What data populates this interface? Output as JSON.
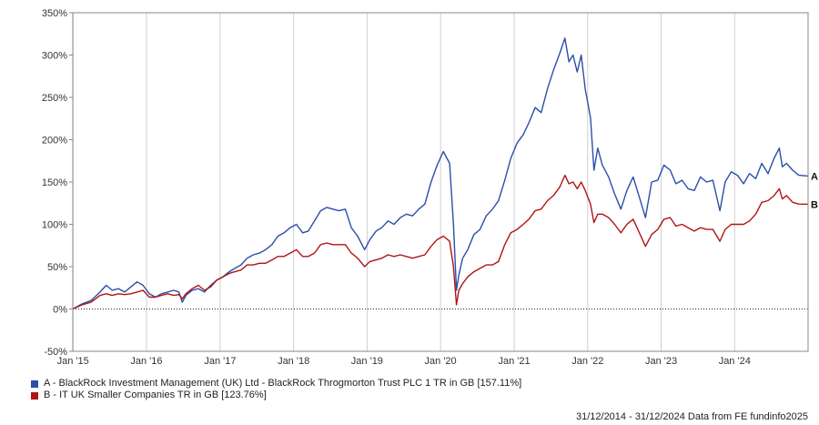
{
  "chart_data": {
    "type": "line",
    "title": "",
    "xlabel": "",
    "ylabel": "",
    "ylim": [
      -50,
      350
    ],
    "y_ticks": [
      -50,
      0,
      50,
      100,
      150,
      200,
      250,
      300,
      350
    ],
    "y_tick_labels": [
      "-50%",
      "0%",
      "50%",
      "100%",
      "150%",
      "200%",
      "250%",
      "300%",
      "350%"
    ],
    "x_range": [
      "2014-12-31",
      "2024-12-31"
    ],
    "x_ticks": [
      "2015-01-01",
      "2016-01-01",
      "2017-01-01",
      "2018-01-01",
      "2019-01-01",
      "2020-01-01",
      "2021-01-01",
      "2022-01-01",
      "2023-01-01",
      "2024-01-01"
    ],
    "x_tick_labels": [
      "Jan '15",
      "Jan '16",
      "Jan '17",
      "Jan '18",
      "Jan '19",
      "Jan '20",
      "Jan '21",
      "Jan '22",
      "Jan '23",
      "Jan '24"
    ],
    "grid": "vertical",
    "zero_line": "dotted",
    "legend_placement": "bottom-left",
    "series": [
      {
        "key": "A",
        "name": "A - BlackRock Investment Management (UK) Ltd - BlackRock Throgmorton Trust PLC 1 TR in GB [157.11%]",
        "color": "#2a4fa8",
        "points": [
          [
            "2014-12-31",
            0
          ],
          [
            "2015-02-15",
            6
          ],
          [
            "2015-04-01",
            10
          ],
          [
            "2015-05-15",
            20
          ],
          [
            "2015-06-15",
            28
          ],
          [
            "2015-07-15",
            22
          ],
          [
            "2015-08-15",
            24
          ],
          [
            "2015-09-15",
            20
          ],
          [
            "2015-10-15",
            26
          ],
          [
            "2015-11-15",
            32
          ],
          [
            "2015-12-15",
            28
          ],
          [
            "2016-01-15",
            18
          ],
          [
            "2016-02-15",
            14
          ],
          [
            "2016-03-15",
            18
          ],
          [
            "2016-04-15",
            20
          ],
          [
            "2016-05-15",
            22
          ],
          [
            "2016-06-10",
            20
          ],
          [
            "2016-06-27",
            8
          ],
          [
            "2016-07-15",
            16
          ],
          [
            "2016-08-15",
            22
          ],
          [
            "2016-09-15",
            24
          ],
          [
            "2016-10-15",
            20
          ],
          [
            "2016-11-15",
            28
          ],
          [
            "2016-12-15",
            34
          ],
          [
            "2017-01-15",
            38
          ],
          [
            "2017-02-15",
            44
          ],
          [
            "2017-03-15",
            48
          ],
          [
            "2017-04-15",
            52
          ],
          [
            "2017-05-15",
            60
          ],
          [
            "2017-06-15",
            64
          ],
          [
            "2017-07-15",
            66
          ],
          [
            "2017-08-15",
            70
          ],
          [
            "2017-09-15",
            76
          ],
          [
            "2017-10-15",
            86
          ],
          [
            "2017-11-15",
            90
          ],
          [
            "2017-12-15",
            96
          ],
          [
            "2018-01-15",
            100
          ],
          [
            "2018-02-15",
            90
          ],
          [
            "2018-03-15",
            92
          ],
          [
            "2018-04-15",
            104
          ],
          [
            "2018-05-15",
            116
          ],
          [
            "2018-06-15",
            120
          ],
          [
            "2018-07-15",
            118
          ],
          [
            "2018-08-15",
            116
          ],
          [
            "2018-09-15",
            118
          ],
          [
            "2018-10-15",
            96
          ],
          [
            "2018-11-15",
            86
          ],
          [
            "2018-12-20",
            70
          ],
          [
            "2019-01-15",
            82
          ],
          [
            "2019-02-15",
            92
          ],
          [
            "2019-03-15",
            96
          ],
          [
            "2019-04-15",
            104
          ],
          [
            "2019-05-15",
            100
          ],
          [
            "2019-06-15",
            108
          ],
          [
            "2019-07-15",
            112
          ],
          [
            "2019-08-15",
            110
          ],
          [
            "2019-09-15",
            118
          ],
          [
            "2019-10-15",
            124
          ],
          [
            "2019-11-15",
            150
          ],
          [
            "2019-12-15",
            170
          ],
          [
            "2020-01-15",
            186
          ],
          [
            "2020-02-15",
            172
          ],
          [
            "2020-03-05",
            100
          ],
          [
            "2020-03-20",
            22
          ],
          [
            "2020-04-01",
            40
          ],
          [
            "2020-04-20",
            60
          ],
          [
            "2020-05-15",
            70
          ],
          [
            "2020-06-15",
            88
          ],
          [
            "2020-07-15",
            94
          ],
          [
            "2020-08-15",
            110
          ],
          [
            "2020-09-15",
            118
          ],
          [
            "2020-10-15",
            128
          ],
          [
            "2020-11-15",
            152
          ],
          [
            "2020-12-15",
            178
          ],
          [
            "2021-01-15",
            196
          ],
          [
            "2021-02-15",
            206
          ],
          [
            "2021-03-15",
            220
          ],
          [
            "2021-04-15",
            238
          ],
          [
            "2021-05-15",
            232
          ],
          [
            "2021-06-15",
            260
          ],
          [
            "2021-07-15",
            282
          ],
          [
            "2021-08-15",
            302
          ],
          [
            "2021-09-10",
            320
          ],
          [
            "2021-09-30",
            292
          ],
          [
            "2021-10-20",
            300
          ],
          [
            "2021-11-10",
            280
          ],
          [
            "2021-11-30",
            300
          ],
          [
            "2021-12-20",
            260
          ],
          [
            "2022-01-15",
            226
          ],
          [
            "2022-02-01",
            164
          ],
          [
            "2022-02-20",
            190
          ],
          [
            "2022-03-15",
            170
          ],
          [
            "2022-04-15",
            156
          ],
          [
            "2022-05-15",
            136
          ],
          [
            "2022-06-15",
            118
          ],
          [
            "2022-07-15",
            140
          ],
          [
            "2022-08-15",
            156
          ],
          [
            "2022-09-15",
            132
          ],
          [
            "2022-10-15",
            108
          ],
          [
            "2022-11-15",
            150
          ],
          [
            "2022-12-15",
            152
          ],
          [
            "2023-01-15",
            170
          ],
          [
            "2023-02-15",
            164
          ],
          [
            "2023-03-15",
            148
          ],
          [
            "2023-04-15",
            152
          ],
          [
            "2023-05-15",
            142
          ],
          [
            "2023-06-15",
            140
          ],
          [
            "2023-07-15",
            156
          ],
          [
            "2023-08-15",
            150
          ],
          [
            "2023-09-15",
            152
          ],
          [
            "2023-10-20",
            116
          ],
          [
            "2023-11-15",
            150
          ],
          [
            "2023-12-15",
            162
          ],
          [
            "2024-01-15",
            158
          ],
          [
            "2024-02-15",
            148
          ],
          [
            "2024-03-15",
            160
          ],
          [
            "2024-04-15",
            154
          ],
          [
            "2024-05-15",
            172
          ],
          [
            "2024-06-15",
            160
          ],
          [
            "2024-07-15",
            178
          ],
          [
            "2024-08-10",
            190
          ],
          [
            "2024-08-25",
            168
          ],
          [
            "2024-09-15",
            172
          ],
          [
            "2024-10-15",
            164
          ],
          [
            "2024-11-15",
            158
          ],
          [
            "2024-12-31",
            157.11
          ]
        ]
      },
      {
        "key": "B",
        "name": "B - IT UK Smaller Companies TR in GB [123.76%]",
        "color": "#b01414",
        "points": [
          [
            "2014-12-31",
            0
          ],
          [
            "2015-02-15",
            5
          ],
          [
            "2015-04-01",
            8
          ],
          [
            "2015-05-15",
            16
          ],
          [
            "2015-06-15",
            18
          ],
          [
            "2015-07-15",
            16
          ],
          [
            "2015-08-15",
            18
          ],
          [
            "2015-09-15",
            17
          ],
          [
            "2015-10-15",
            18
          ],
          [
            "2015-11-15",
            20
          ],
          [
            "2015-12-15",
            22
          ],
          [
            "2016-01-15",
            14
          ],
          [
            "2016-02-15",
            14
          ],
          [
            "2016-03-15",
            16
          ],
          [
            "2016-04-15",
            18
          ],
          [
            "2016-05-15",
            16
          ],
          [
            "2016-06-10",
            17
          ],
          [
            "2016-06-27",
            12
          ],
          [
            "2016-07-15",
            18
          ],
          [
            "2016-08-15",
            24
          ],
          [
            "2016-09-15",
            28
          ],
          [
            "2016-10-15",
            22
          ],
          [
            "2016-11-15",
            26
          ],
          [
            "2016-12-15",
            34
          ],
          [
            "2017-01-15",
            38
          ],
          [
            "2017-02-15",
            42
          ],
          [
            "2017-03-15",
            44
          ],
          [
            "2017-04-15",
            46
          ],
          [
            "2017-05-15",
            52
          ],
          [
            "2017-06-15",
            52
          ],
          [
            "2017-07-15",
            54
          ],
          [
            "2017-08-15",
            54
          ],
          [
            "2017-09-15",
            58
          ],
          [
            "2017-10-15",
            62
          ],
          [
            "2017-11-15",
            62
          ],
          [
            "2017-12-15",
            66
          ],
          [
            "2018-01-15",
            70
          ],
          [
            "2018-02-15",
            62
          ],
          [
            "2018-03-15",
            62
          ],
          [
            "2018-04-15",
            66
          ],
          [
            "2018-05-15",
            76
          ],
          [
            "2018-06-15",
            78
          ],
          [
            "2018-07-15",
            76
          ],
          [
            "2018-08-15",
            76
          ],
          [
            "2018-09-15",
            76
          ],
          [
            "2018-10-15",
            66
          ],
          [
            "2018-11-15",
            60
          ],
          [
            "2018-12-20",
            50
          ],
          [
            "2019-01-15",
            56
          ],
          [
            "2019-02-15",
            58
          ],
          [
            "2019-03-15",
            60
          ],
          [
            "2019-04-15",
            64
          ],
          [
            "2019-05-15",
            62
          ],
          [
            "2019-06-15",
            64
          ],
          [
            "2019-07-15",
            62
          ],
          [
            "2019-08-15",
            60
          ],
          [
            "2019-09-15",
            62
          ],
          [
            "2019-10-15",
            64
          ],
          [
            "2019-11-15",
            74
          ],
          [
            "2019-12-15",
            82
          ],
          [
            "2020-01-15",
            86
          ],
          [
            "2020-02-15",
            80
          ],
          [
            "2020-03-05",
            50
          ],
          [
            "2020-03-20",
            5
          ],
          [
            "2020-04-01",
            22
          ],
          [
            "2020-04-20",
            30
          ],
          [
            "2020-05-15",
            38
          ],
          [
            "2020-06-15",
            44
          ],
          [
            "2020-07-15",
            48
          ],
          [
            "2020-08-15",
            52
          ],
          [
            "2020-09-15",
            52
          ],
          [
            "2020-10-15",
            56
          ],
          [
            "2020-11-15",
            76
          ],
          [
            "2020-12-15",
            90
          ],
          [
            "2021-01-15",
            94
          ],
          [
            "2021-02-15",
            100
          ],
          [
            "2021-03-15",
            106
          ],
          [
            "2021-04-15",
            116
          ],
          [
            "2021-05-15",
            118
          ],
          [
            "2021-06-15",
            128
          ],
          [
            "2021-07-15",
            134
          ],
          [
            "2021-08-15",
            144
          ],
          [
            "2021-09-10",
            158
          ],
          [
            "2021-09-30",
            148
          ],
          [
            "2021-10-20",
            150
          ],
          [
            "2021-11-10",
            142
          ],
          [
            "2021-11-30",
            150
          ],
          [
            "2021-12-20",
            140
          ],
          [
            "2022-01-15",
            124
          ],
          [
            "2022-02-01",
            102
          ],
          [
            "2022-02-20",
            112
          ],
          [
            "2022-03-15",
            112
          ],
          [
            "2022-04-15",
            108
          ],
          [
            "2022-05-15",
            100
          ],
          [
            "2022-06-15",
            90
          ],
          [
            "2022-07-15",
            100
          ],
          [
            "2022-08-15",
            106
          ],
          [
            "2022-09-15",
            90
          ],
          [
            "2022-10-15",
            74
          ],
          [
            "2022-11-15",
            88
          ],
          [
            "2022-12-15",
            94
          ],
          [
            "2023-01-15",
            106
          ],
          [
            "2023-02-15",
            108
          ],
          [
            "2023-03-15",
            98
          ],
          [
            "2023-04-15",
            100
          ],
          [
            "2023-05-15",
            96
          ],
          [
            "2023-06-15",
            92
          ],
          [
            "2023-07-15",
            96
          ],
          [
            "2023-08-15",
            94
          ],
          [
            "2023-09-15",
            94
          ],
          [
            "2023-10-20",
            80
          ],
          [
            "2023-11-15",
            94
          ],
          [
            "2023-12-15",
            100
          ],
          [
            "2024-01-15",
            100
          ],
          [
            "2024-02-15",
            100
          ],
          [
            "2024-03-15",
            104
          ],
          [
            "2024-04-15",
            112
          ],
          [
            "2024-05-15",
            126
          ],
          [
            "2024-06-15",
            128
          ],
          [
            "2024-07-15",
            134
          ],
          [
            "2024-08-10",
            142
          ],
          [
            "2024-08-25",
            130
          ],
          [
            "2024-09-15",
            134
          ],
          [
            "2024-10-15",
            126
          ],
          [
            "2024-11-15",
            124
          ],
          [
            "2024-12-31",
            123.76
          ]
        ]
      }
    ],
    "footer": "31/12/2014 - 31/12/2024 Data from FE fundinfo2025"
  }
}
